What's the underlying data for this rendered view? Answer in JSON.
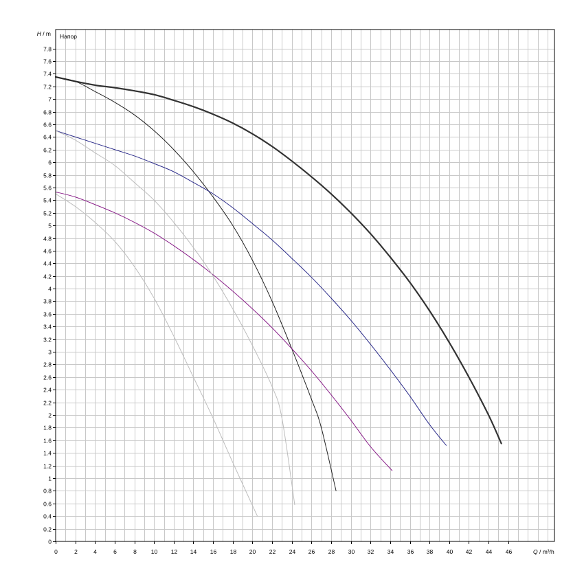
{
  "chart_data": {
    "type": "line",
    "title": "",
    "legend_text": "Напор",
    "y_unit_label": {
      "symbol": "H",
      "unit": " / m"
    },
    "x_unit_label": {
      "symbol": "Q",
      "unit": " / m³/h"
    },
    "xlim": [
      0,
      50.7
    ],
    "ylim": [
      0,
      8.1
    ],
    "x_ticks": [
      0,
      2,
      4,
      6,
      8,
      10,
      12,
      14,
      16,
      18,
      20,
      22,
      24,
      26,
      28,
      30,
      32,
      34,
      36,
      38,
      40,
      42,
      44,
      46
    ],
    "x_minor_step": 1,
    "y_step": 0.2,
    "y_tick_max": 7.8,
    "grid": true,
    "series": [
      {
        "color": "#333333",
        "width": 2.2,
        "points": [
          [
            0,
            7.35
          ],
          [
            2,
            7.28
          ],
          [
            4,
            7.22
          ],
          [
            6,
            7.18
          ],
          [
            8,
            7.13
          ],
          [
            10,
            7.07
          ],
          [
            12,
            6.98
          ],
          [
            14,
            6.88
          ],
          [
            16,
            6.76
          ],
          [
            18,
            6.62
          ],
          [
            20,
            6.45
          ],
          [
            22,
            6.25
          ],
          [
            24,
            6.02
          ],
          [
            26,
            5.77
          ],
          [
            28,
            5.5
          ],
          [
            30,
            5.2
          ],
          [
            32,
            4.87
          ],
          [
            34,
            4.5
          ],
          [
            36,
            4.1
          ],
          [
            38,
            3.65
          ],
          [
            40,
            3.15
          ],
          [
            42,
            2.6
          ],
          [
            44,
            2.0
          ],
          [
            45.3,
            1.55
          ]
        ]
      },
      {
        "color": "#222222",
        "width": 1,
        "points": [
          [
            0,
            7.35
          ],
          [
            2,
            7.28
          ],
          [
            4,
            7.12
          ],
          [
            6,
            6.95
          ],
          [
            8,
            6.75
          ],
          [
            10,
            6.5
          ],
          [
            12,
            6.2
          ],
          [
            14,
            5.85
          ],
          [
            16,
            5.45
          ],
          [
            18,
            5.0
          ],
          [
            20,
            4.45
          ],
          [
            22,
            3.8
          ],
          [
            24,
            3.05
          ],
          [
            26,
            2.25
          ],
          [
            27,
            1.8
          ],
          [
            28.5,
            0.8
          ]
        ]
      },
      {
        "color": "#2b2b8a",
        "width": 1,
        "points": [
          [
            0,
            6.5
          ],
          [
            2,
            6.4
          ],
          [
            4,
            6.3
          ],
          [
            6,
            6.2
          ],
          [
            8,
            6.1
          ],
          [
            10,
            5.98
          ],
          [
            12,
            5.85
          ],
          [
            14,
            5.68
          ],
          [
            16,
            5.5
          ],
          [
            18,
            5.28
          ],
          [
            20,
            5.03
          ],
          [
            22,
            4.77
          ],
          [
            24,
            4.48
          ],
          [
            26,
            4.18
          ],
          [
            28,
            3.85
          ],
          [
            30,
            3.5
          ],
          [
            32,
            3.12
          ],
          [
            34,
            2.72
          ],
          [
            36,
            2.3
          ],
          [
            38,
            1.85
          ],
          [
            39.7,
            1.52
          ]
        ]
      },
      {
        "color": "#8a208a",
        "width": 1,
        "points": [
          [
            0,
            5.53
          ],
          [
            2,
            5.45
          ],
          [
            4,
            5.33
          ],
          [
            6,
            5.2
          ],
          [
            8,
            5.05
          ],
          [
            10,
            4.88
          ],
          [
            12,
            4.68
          ],
          [
            14,
            4.46
          ],
          [
            16,
            4.22
          ],
          [
            18,
            3.96
          ],
          [
            20,
            3.68
          ],
          [
            22,
            3.38
          ],
          [
            24,
            3.05
          ],
          [
            26,
            2.7
          ],
          [
            28,
            2.32
          ],
          [
            30,
            1.92
          ],
          [
            32,
            1.5
          ],
          [
            34.2,
            1.12
          ]
        ]
      },
      {
        "color": "#bdbdbd",
        "width": 1,
        "points": [
          [
            0,
            6.5
          ],
          [
            2,
            6.35
          ],
          [
            4,
            6.15
          ],
          [
            6,
            5.95
          ],
          [
            8,
            5.68
          ],
          [
            10,
            5.4
          ],
          [
            12,
            5.05
          ],
          [
            14,
            4.65
          ],
          [
            16,
            4.2
          ],
          [
            18,
            3.68
          ],
          [
            20,
            3.1
          ],
          [
            22,
            2.45
          ],
          [
            23,
            1.95
          ],
          [
            24.3,
            0.58
          ]
        ]
      },
      {
        "color": "#bdbdbd",
        "width": 1,
        "points": [
          [
            0,
            5.5
          ],
          [
            2,
            5.3
          ],
          [
            4,
            5.05
          ],
          [
            6,
            4.75
          ],
          [
            8,
            4.35
          ],
          [
            10,
            3.85
          ],
          [
            12,
            3.25
          ],
          [
            14,
            2.6
          ],
          [
            16,
            1.95
          ],
          [
            18,
            1.25
          ],
          [
            20.5,
            0.4
          ]
        ]
      }
    ]
  }
}
